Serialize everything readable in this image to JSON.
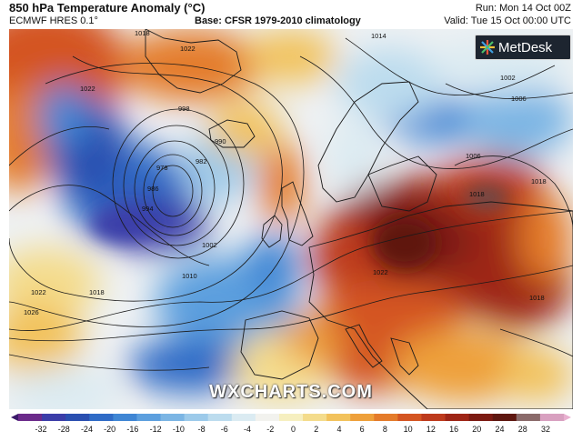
{
  "header": {
    "title": "850 hPa Temperature Anomaly (°C)",
    "model": "ECMWF HRES 0.1°",
    "base": "Base: CFSR 1979-2010 climatology",
    "run": "Run: Mon 14 Oct 00Z",
    "valid": "Valid: Tue 15 Oct 00:00 UTC"
  },
  "logo": {
    "text": "MetDesk",
    "icon": "metdesk-star-icon",
    "background": "#1d2530"
  },
  "watermark": "WXCHARTS.COM",
  "isobar_labels": [
    "1018",
    "1022",
    "1022",
    "998",
    "990",
    "982",
    "978",
    "986",
    "994",
    "1002",
    "1010",
    "1018",
    "1022",
    "1026",
    "1014",
    "1002",
    "1006",
    "1006",
    "1018",
    "1018",
    "1018",
    "1022"
  ],
  "colorbar": {
    "ticks": [
      "-32",
      "-28",
      "-24",
      "-20",
      "-16",
      "-12",
      "-10",
      "-8",
      "-6",
      "-4",
      "-2",
      "0",
      "2",
      "4",
      "6",
      "8",
      "10",
      "12",
      "16",
      "20",
      "24",
      "28",
      "32"
    ],
    "colors": [
      "#6b2a8a",
      "#3b3da8",
      "#2a4fb0",
      "#2f6bc6",
      "#3f86d4",
      "#5c9fde",
      "#7bb5e4",
      "#9ccaea",
      "#bcdcee",
      "#dbebf2",
      "#f2f2ee",
      "#f6efc0",
      "#f4dc8c",
      "#f2c25c",
      "#eea03a",
      "#e47b2a",
      "#d45522",
      "#bd3a1c",
      "#9e2516",
      "#7c1a12",
      "#5e1710",
      "#8a6a6a",
      "#d8a0c0"
    ]
  },
  "colors": {
    "ocean_base": "#eef2f5",
    "warm_core": "#6a1410",
    "cold_core": "#1f3fa0",
    "isobar": "#1a1a1a"
  }
}
